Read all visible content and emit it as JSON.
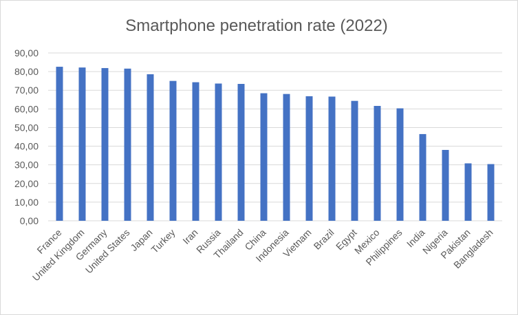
{
  "chart_data": {
    "type": "bar",
    "title": "Smartphone penetration rate (2022)",
    "xlabel": "",
    "ylabel": "",
    "ylim": [
      0,
      90
    ],
    "y_ticks": [
      "0,00",
      "10,00",
      "20,00",
      "30,00",
      "40,00",
      "50,00",
      "60,00",
      "70,00",
      "80,00",
      "90,00"
    ],
    "grid": true,
    "legend": "none",
    "bar_color": "#4472c4",
    "categories": [
      "France",
      "United Kingdom",
      "Germany",
      "United States",
      "Japan",
      "Turkey",
      "Iran",
      "Russia",
      "Thailand",
      "China",
      "Indonesia",
      "Vietnam",
      "Brazil",
      "Egypt",
      "Mexico",
      "Philippines",
      "India",
      "Nigeria",
      "Pakistan",
      "Bangladesh"
    ],
    "values": [
      82.6,
      82.2,
      81.9,
      81.6,
      78.6,
      75.0,
      74.3,
      73.6,
      73.4,
      68.4,
      68.0,
      66.8,
      66.6,
      64.3,
      61.6,
      60.3,
      46.5,
      38.0,
      30.8,
      30.4
    ]
  }
}
